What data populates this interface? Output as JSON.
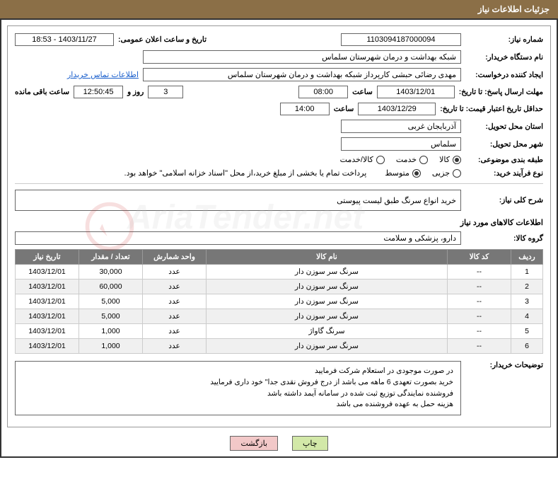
{
  "header": {
    "title": "جزئیات اطلاعات نیاز"
  },
  "fields": {
    "need_number_label": "شماره نیاز:",
    "need_number": "1103094187000094",
    "announce_datetime_label": "تاریخ و ساعت اعلان عمومی:",
    "announce_datetime": "1403/11/27 - 18:53",
    "buyer_label": "نام دستگاه خریدار:",
    "buyer": "شبکه بهداشت و درمان  شهرستان سلماس",
    "requester_label": "ایجاد کننده درخواست:",
    "requester": "مهدی رضائی حبشی کارپرداز شبکه بهداشت و درمان  شهرستان سلماس",
    "contact_link": "اطلاعات تماس خریدار",
    "deadline_label": "مهلت ارسال پاسخ: تا تاریخ:",
    "deadline_date": "1403/12/01",
    "time_label": "ساعت",
    "deadline_time": "08:00",
    "days_remain": "3",
    "days_and": "روز و",
    "countdown": "12:50:45",
    "remaining_suffix": "ساعت باقی مانده",
    "price_valid_label": "حداقل تاریخ اعتبار قیمت: تا تاریخ:",
    "price_valid_date": "1403/12/29",
    "price_valid_time": "14:00",
    "province_label": "استان محل تحویل:",
    "province": "آذربایجان غربی",
    "city_label": "شهر محل تحویل:",
    "city": "سلماس",
    "category_label": "طبقه بندی موضوعی:",
    "cat_goods": "کالا",
    "cat_service": "خدمت",
    "cat_goods_service": "کالا/خدمت",
    "process_label": "نوع فرآیند خرید:",
    "proc_partial": "جزیی",
    "proc_medium": "متوسط",
    "payment_note": "پرداخت تمام یا بخشی از مبلغ خرید،از محل \"اسناد خزانه اسلامی\" خواهد بود.",
    "summary_label": "شرح کلی نیاز:",
    "summary": "خرید انواع سرنگ طبق لیست پیوستی",
    "items_section": "اطلاعات کالاهای مورد نیاز",
    "group_label": "گروه کالا:",
    "group": "دارو، پزشکی و سلامت",
    "buyer_notes_label": "توضیحات خریدار:"
  },
  "table": {
    "headers": {
      "row": "ردیف",
      "code": "کد کالا",
      "name": "نام کالا",
      "unit": "واحد شمارش",
      "qty": "تعداد / مقدار",
      "date": "تاریخ نیاز"
    },
    "rows": [
      {
        "n": "1",
        "code": "--",
        "name": "سرنگ سر سوزن دار",
        "unit": "عدد",
        "qty": "30,000",
        "date": "1403/12/01"
      },
      {
        "n": "2",
        "code": "--",
        "name": "سرنگ سر سوزن دار",
        "unit": "عدد",
        "qty": "60,000",
        "date": "1403/12/01"
      },
      {
        "n": "3",
        "code": "--",
        "name": "سرنگ سر سوزن دار",
        "unit": "عدد",
        "qty": "5,000",
        "date": "1403/12/01"
      },
      {
        "n": "4",
        "code": "--",
        "name": "سرنگ سر سوزن دار",
        "unit": "عدد",
        "qty": "5,000",
        "date": "1403/12/01"
      },
      {
        "n": "5",
        "code": "--",
        "name": "سرنگ گاواژ",
        "unit": "عدد",
        "qty": "1,000",
        "date": "1403/12/01"
      },
      {
        "n": "6",
        "code": "--",
        "name": "سرنگ سر سوزن دار",
        "unit": "عدد",
        "qty": "1,000",
        "date": "1403/12/01"
      }
    ]
  },
  "notes": {
    "line1": "در صورت موجودی در استعلام شرکت فرمایید",
    "line2": "خرید بصورت تعهدی 6 ماهه می باشد از درج فروش نقدی جدا\" خود داری فرمایید",
    "line3": "فروشنده نمایندگی توزیع ثبت شده در سامانه آیمد داشته باشد",
    "line4": "هزینه حمل به عهده فروشنده می باشد"
  },
  "buttons": {
    "print": "چاپ",
    "back": "بازگشت"
  },
  "watermark": "AriaTender.net",
  "colors": {
    "header_bg": "#8b6f47",
    "table_header_bg": "#777777",
    "btn_print": "#d2e8a8",
    "btn_back": "#f2c8c8"
  }
}
